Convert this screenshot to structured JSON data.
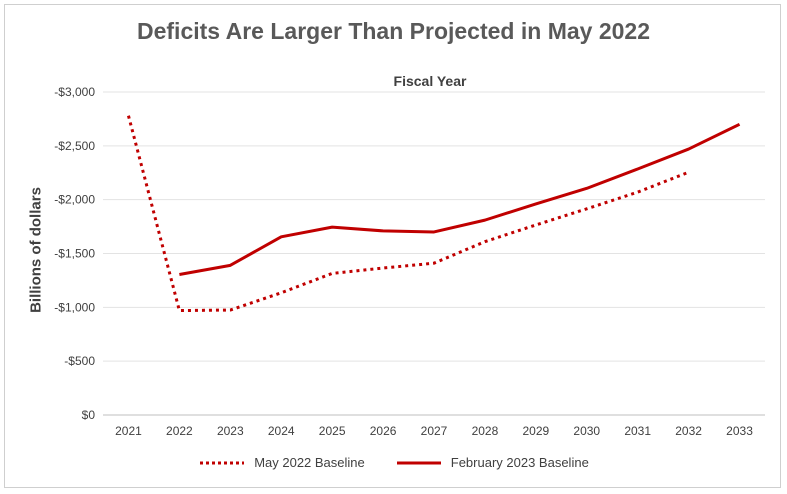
{
  "chart_data": {
    "type": "line",
    "title": "Deficits Are Larger Than Projected in May 2022",
    "subtitle": "Fiscal Year",
    "ylabel": "Billions of dollars",
    "xlabel": "",
    "x": [
      "2021",
      "2022",
      "2023",
      "2024",
      "2025",
      "2026",
      "2027",
      "2028",
      "2029",
      "2030",
      "2031",
      "2032",
      "2033"
    ],
    "y_ticks": [
      0,
      500,
      1000,
      1500,
      2000,
      2500,
      3000
    ],
    "y_tick_labels": [
      "$0",
      "-$500",
      "-$1,000",
      "-$1,500",
      "-$2,000",
      "-$2,500",
      "-$3,000"
    ],
    "ylim": [
      0,
      3000
    ],
    "grid": true,
    "legend_position": "bottom",
    "series": [
      {
        "name": "May 2022 Baseline",
        "style": "dotted",
        "color": "#c00000",
        "values": [
          2780,
          970,
          975,
          1135,
          1315,
          1365,
          1410,
          1610,
          1765,
          1915,
          2070,
          2255,
          null
        ]
      },
      {
        "name": "February 2023 Baseline",
        "style": "solid",
        "color": "#c00000",
        "values": [
          null,
          1305,
          1390,
          1655,
          1745,
          1710,
          1700,
          1810,
          1960,
          2105,
          2285,
          2470,
          2700
        ]
      }
    ]
  }
}
